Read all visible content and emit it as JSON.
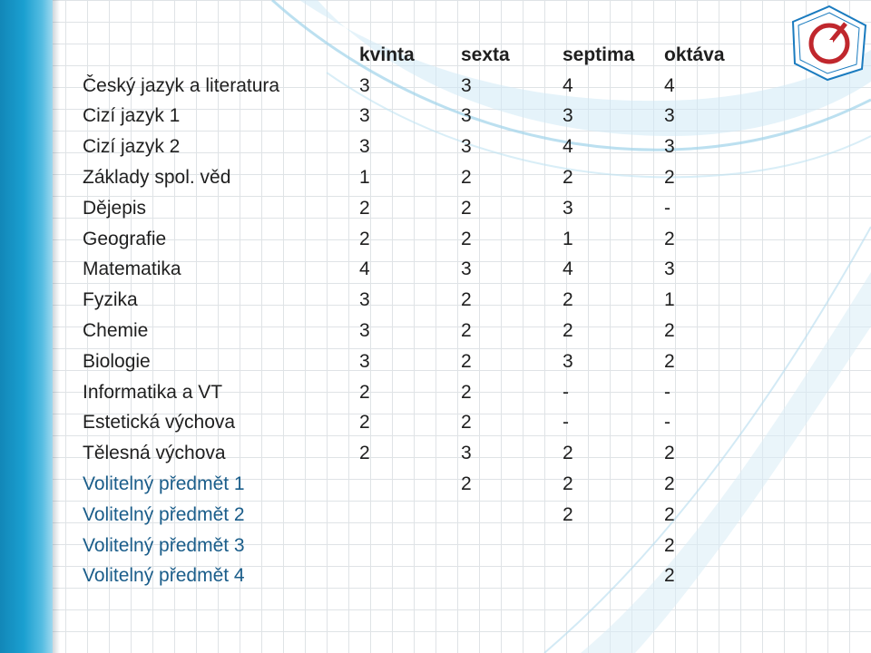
{
  "colors": {
    "band": "#1a9fd0",
    "text": "#1f1f1f",
    "elective_text": "#1a5d8a",
    "logo_red": "#c0272d",
    "logo_blue": "#1a7bbf"
  },
  "logo": {
    "icon": "school-logo-icon"
  },
  "table": {
    "columns": [
      "kvinta",
      "sexta",
      "septima",
      "oktáva"
    ],
    "rows": [
      {
        "subject": "Český jazyk a literatura",
        "values": [
          "3",
          "3",
          "4",
          "4"
        ]
      },
      {
        "subject": "Cizí jazyk 1",
        "values": [
          "3",
          "3",
          "3",
          "3"
        ]
      },
      {
        "subject": "Cizí jazyk 2",
        "values": [
          "3",
          "3",
          "4",
          "3"
        ]
      },
      {
        "subject": "Základy spol. věd",
        "values": [
          "1",
          "2",
          "2",
          "2"
        ]
      },
      {
        "subject": "Dějepis",
        "values": [
          "2",
          "2",
          "3",
          "-"
        ]
      },
      {
        "subject": "Geografie",
        "values": [
          "2",
          "2",
          "1",
          "2"
        ]
      },
      {
        "subject": "Matematika",
        "values": [
          "4",
          "3",
          "4",
          "3"
        ]
      },
      {
        "subject": "Fyzika",
        "values": [
          "3",
          "2",
          "2",
          "1"
        ]
      },
      {
        "subject": "Chemie",
        "values": [
          "3",
          "2",
          "2",
          "2"
        ]
      },
      {
        "subject": "Biologie",
        "values": [
          "3",
          "2",
          "3",
          "2"
        ]
      },
      {
        "subject": "Informatika a VT",
        "values": [
          "2",
          "2",
          "-",
          "-"
        ]
      },
      {
        "subject": "Estetická výchova",
        "values": [
          "2",
          "2",
          "-",
          "-"
        ]
      },
      {
        "subject": "Tělesná výchova",
        "values": [
          "2",
          "3",
          "2",
          "2"
        ]
      },
      {
        "subject": "Volitelný předmět 1",
        "values": [
          "",
          "2",
          "2",
          "2"
        ],
        "elective": true
      },
      {
        "subject": "Volitelný předmět 2",
        "values": [
          "",
          "",
          "2",
          "2"
        ],
        "elective": true
      },
      {
        "subject": "Volitelný předmět 3",
        "values": [
          "",
          "",
          "",
          "2"
        ],
        "elective": true
      },
      {
        "subject": "Volitelný předmět 4",
        "values": [
          "",
          "",
          "",
          "2"
        ],
        "elective": true
      }
    ]
  }
}
